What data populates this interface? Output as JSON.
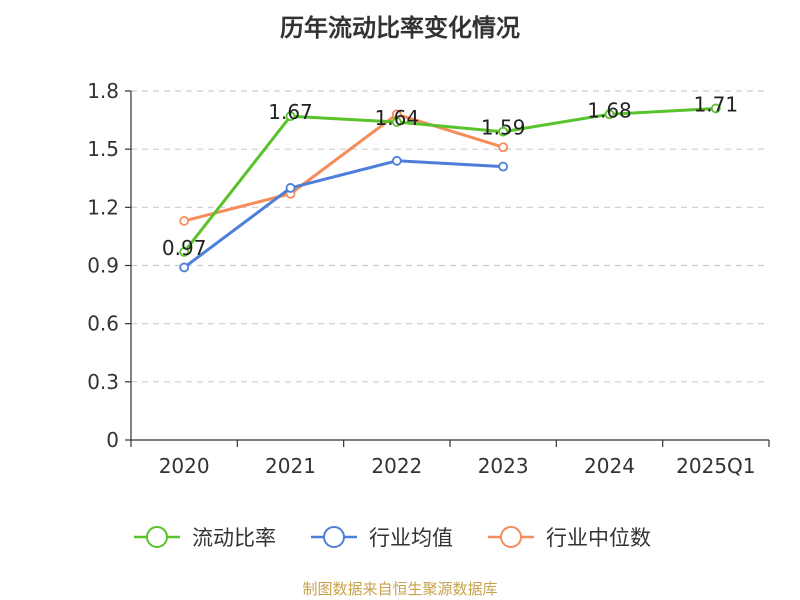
{
  "title": "历年流动比率变化情况",
  "footer": "制图数据来自恒生聚源数据库",
  "chart_data": {
    "type": "line",
    "categories": [
      "2020",
      "2021",
      "2022",
      "2023",
      "2024",
      "2025Q1"
    ],
    "yticks": [
      "0",
      "0.3",
      "0.6",
      "0.9",
      "1.2",
      "1.5",
      "1.8"
    ],
    "ylim": [
      0,
      1.8
    ],
    "grid": true,
    "legend_position": "bottom",
    "series": [
      {
        "name": "流动比率",
        "color": "#5ac22b",
        "values": [
          0.97,
          1.67,
          1.64,
          1.59,
          1.68,
          1.71
        ],
        "labels": [
          "0.97",
          "1.67",
          "1.64",
          "1.59",
          "1.68",
          "1.71"
        ]
      },
      {
        "name": "行业均值",
        "color": "#4d7fd8",
        "values": [
          0.89,
          1.3,
          1.44,
          1.41,
          null,
          null
        ]
      },
      {
        "name": "行业中位数",
        "color": "#f58d5a",
        "values": [
          1.13,
          1.27,
          1.68,
          1.51,
          null,
          null
        ]
      }
    ]
  }
}
